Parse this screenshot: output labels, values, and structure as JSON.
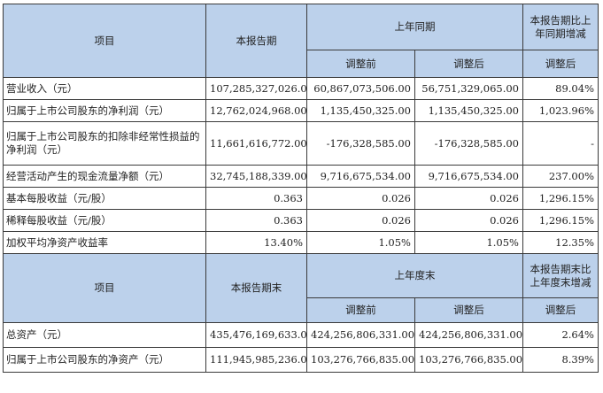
{
  "header1": {
    "item": "项目",
    "current": "本报告期",
    "prior_group": "上年同期",
    "change_line1": "本报告期比上",
    "change_line2": "年同期增减",
    "before": "调整前",
    "after": "调整后",
    "change_after": "调整后"
  },
  "rows1": [
    {
      "label": "营业收入（元）",
      "current": "107,285,327,026.00",
      "before": "60,867,073,506.00",
      "after": "56,751,329,065.00",
      "change": "89.04%"
    },
    {
      "label": "归属于上市公司股东的净利润（元）",
      "current": "12,762,024,968.00",
      "before": "1,135,450,325.00",
      "after": "1,135,450,325.00",
      "change": "1,023.96%"
    },
    {
      "label": "归属于上市公司股东的扣除非经常性损益的净利润（元）",
      "current": "11,661,616,772.00",
      "before": "-176,328,585.00",
      "after": "-176,328,585.00",
      "change": "-"
    },
    {
      "label": "经营活动产生的现金流量净额（元）",
      "current": "32,745,188,339.00",
      "before": "9,716,675,534.00",
      "after": "9,716,675,534.00",
      "change": "237.00%"
    },
    {
      "label": "基本每股收益（元/股）",
      "current": "0.363",
      "before": "0.026",
      "after": "0.026",
      "change": "1,296.15%"
    },
    {
      "label": "稀释每股收益（元/股）",
      "current": "0.363",
      "before": "0.026",
      "after": "0.026",
      "change": "1,296.15%"
    },
    {
      "label": "加权平均净资产收益率",
      "current": "13.40%",
      "before": "1.05%",
      "after": "1.05%",
      "change": "12.35%"
    }
  ],
  "header2": {
    "item": "项目",
    "current": "本报告期末",
    "prior_group": "上年度末",
    "change_line1": "本报告期末比",
    "change_line2": "上年度末增减",
    "before": "调整前",
    "after": "调整后",
    "change_after": "调整后"
  },
  "rows2": [
    {
      "label": "总资产（元）",
      "current": "435,476,169,633.00",
      "before": "424,256,806,331.00",
      "after": "424,256,806,331.00",
      "change": "2.64%"
    },
    {
      "label": "归属于上市公司股东的净资产（元）",
      "current": "111,945,985,236.00",
      "before": "103,276,766,835.00",
      "after": "103,276,766,835.00",
      "change": "8.39%"
    }
  ]
}
